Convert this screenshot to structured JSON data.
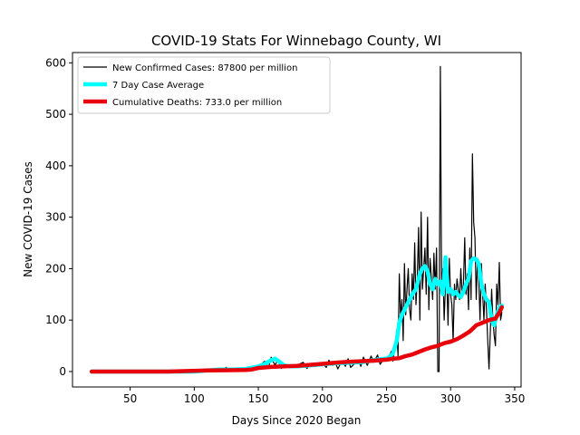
{
  "chart_data": {
    "type": "line",
    "title": "COVID-19 Stats For Winnebago County, WI",
    "xlabel": "Days Since 2020 Began",
    "ylabel": "New COVID-19 Cases",
    "xlim": [
      5,
      355
    ],
    "ylim": [
      -30,
      620
    ],
    "xticks": [
      50,
      100,
      150,
      200,
      250,
      300,
      350
    ],
    "yticks": [
      0,
      100,
      200,
      300,
      400,
      500,
      600
    ],
    "grid": false,
    "legend_position": "top-left",
    "series": [
      {
        "name": "New Confirmed Cases: 87800 per million",
        "color": "#000000",
        "style": "thin",
        "points": [
          [
            20,
            0
          ],
          [
            95,
            0
          ],
          [
            100,
            0
          ],
          [
            110,
            2
          ],
          [
            120,
            3
          ],
          [
            125,
            8
          ],
          [
            130,
            1
          ],
          [
            135,
            6
          ],
          [
            140,
            3
          ],
          [
            145,
            5
          ],
          [
            150,
            10
          ],
          [
            152,
            14
          ],
          [
            155,
            20
          ],
          [
            158,
            8
          ],
          [
            160,
            28
          ],
          [
            163,
            12
          ],
          [
            165,
            22
          ],
          [
            168,
            6
          ],
          [
            170,
            15
          ],
          [
            175,
            9
          ],
          [
            180,
            12
          ],
          [
            185,
            18
          ],
          [
            188,
            6
          ],
          [
            190,
            14
          ],
          [
            195,
            10
          ],
          [
            200,
            16
          ],
          [
            203,
            8
          ],
          [
            205,
            22
          ],
          [
            208,
            12
          ],
          [
            210,
            18
          ],
          [
            212,
            5
          ],
          [
            215,
            20
          ],
          [
            218,
            10
          ],
          [
            220,
            25
          ],
          [
            222,
            8
          ],
          [
            225,
            15
          ],
          [
            228,
            22
          ],
          [
            230,
            10
          ],
          [
            232,
            28
          ],
          [
            235,
            12
          ],
          [
            238,
            30
          ],
          [
            240,
            18
          ],
          [
            243,
            32
          ],
          [
            245,
            14
          ],
          [
            248,
            25
          ],
          [
            250,
            20
          ],
          [
            252,
            30
          ],
          [
            254,
            40
          ],
          [
            255,
            20
          ],
          [
            257,
            60
          ],
          [
            258,
            80
          ],
          [
            259,
            30
          ],
          [
            260,
            190
          ],
          [
            261,
            100
          ],
          [
            262,
            140
          ],
          [
            263,
            60
          ],
          [
            264,
            210
          ],
          [
            265,
            110
          ],
          [
            266,
            160
          ],
          [
            267,
            200
          ],
          [
            268,
            120
          ],
          [
            269,
            100
          ],
          [
            270,
            190
          ],
          [
            271,
            140
          ],
          [
            272,
            250
          ],
          [
            273,
            130
          ],
          [
            274,
            180
          ],
          [
            275,
            280
          ],
          [
            276,
            100
          ],
          [
            277,
            310
          ],
          [
            278,
            160
          ],
          [
            279,
            200
          ],
          [
            280,
            240
          ],
          [
            281,
            150
          ],
          [
            282,
            300
          ],
          [
            283,
            120
          ],
          [
            284,
            220
          ],
          [
            285,
            180
          ],
          [
            286,
            140
          ],
          [
            287,
            230
          ],
          [
            288,
            160
          ],
          [
            289,
            240
          ],
          [
            290,
            0
          ],
          [
            291,
            0
          ],
          [
            292,
            593
          ],
          [
            293,
            160
          ],
          [
            294,
            200
          ],
          [
            295,
            100
          ],
          [
            296,
            170
          ],
          [
            297,
            180
          ],
          [
            298,
            90
          ],
          [
            299,
            220
          ],
          [
            300,
            150
          ],
          [
            301,
            130
          ],
          [
            302,
            60
          ],
          [
            303,
            170
          ],
          [
            304,
            140
          ],
          [
            305,
            180
          ],
          [
            306,
            160
          ],
          [
            307,
            140
          ],
          [
            308,
            200
          ],
          [
            309,
            150
          ],
          [
            310,
            170
          ],
          [
            311,
            260
          ],
          [
            312,
            150
          ],
          [
            313,
            190
          ],
          [
            314,
            120
          ],
          [
            315,
            240
          ],
          [
            316,
            140
          ],
          [
            317,
            423
          ],
          [
            318,
            290
          ],
          [
            319,
            260
          ],
          [
            320,
            140
          ],
          [
            321,
            220
          ],
          [
            322,
            180
          ],
          [
            323,
            100
          ],
          [
            324,
            210
          ],
          [
            325,
            150
          ],
          [
            326,
            100
          ],
          [
            327,
            170
          ],
          [
            328,
            120
          ],
          [
            329,
            60
          ],
          [
            330,
            5
          ],
          [
            331,
            80
          ],
          [
            332,
            160
          ],
          [
            333,
            100
          ],
          [
            334,
            70
          ],
          [
            335,
            50
          ],
          [
            336,
            170
          ],
          [
            337,
            130
          ],
          [
            338,
            212
          ],
          [
            339,
            100
          ],
          [
            340,
            115
          ]
        ]
      },
      {
        "name": "7 Day Case Average",
        "color": "#00ffff",
        "style": "thick",
        "points": [
          [
            20,
            0
          ],
          [
            100,
            0
          ],
          [
            110,
            2
          ],
          [
            120,
            4
          ],
          [
            130,
            4
          ],
          [
            140,
            5
          ],
          [
            150,
            10
          ],
          [
            155,
            15
          ],
          [
            160,
            22
          ],
          [
            163,
            25
          ],
          [
            166,
            20
          ],
          [
            170,
            12
          ],
          [
            175,
            10
          ],
          [
            180,
            10
          ],
          [
            190,
            12
          ],
          [
            200,
            14
          ],
          [
            210,
            16
          ],
          [
            220,
            17
          ],
          [
            230,
            18
          ],
          [
            240,
            22
          ],
          [
            245,
            24
          ],
          [
            250,
            25
          ],
          [
            252,
            28
          ],
          [
            255,
            35
          ],
          [
            258,
            60
          ],
          [
            260,
            95
          ],
          [
            262,
            110
          ],
          [
            265,
            125
          ],
          [
            268,
            140
          ],
          [
            270,
            150
          ],
          [
            273,
            160
          ],
          [
            276,
            190
          ],
          [
            278,
            200
          ],
          [
            280,
            205
          ],
          [
            282,
            195
          ],
          [
            284,
            170
          ],
          [
            286,
            160
          ],
          [
            288,
            180
          ],
          [
            290,
            170
          ],
          [
            292,
            175
          ],
          [
            294,
            150
          ],
          [
            296,
            222
          ],
          [
            298,
            155
          ],
          [
            300,
            160
          ],
          [
            302,
            150
          ],
          [
            304,
            155
          ],
          [
            306,
            148
          ],
          [
            308,
            145
          ],
          [
            310,
            155
          ],
          [
            312,
            170
          ],
          [
            314,
            180
          ],
          [
            316,
            215
          ],
          [
            318,
            220
          ],
          [
            320,
            218
          ],
          [
            322,
            210
          ],
          [
            324,
            170
          ],
          [
            326,
            150
          ],
          [
            328,
            140
          ],
          [
            330,
            135
          ],
          [
            332,
            100
          ],
          [
            334,
            90
          ],
          [
            336,
            110
          ],
          [
            338,
            125
          ],
          [
            340,
            128
          ]
        ]
      },
      {
        "name": "Cumulative Deaths: 733.0 per million",
        "color": "#e8000b",
        "style": "thick",
        "points": [
          [
            20,
            0
          ],
          [
            80,
            0
          ],
          [
            95,
            1
          ],
          [
            110,
            2
          ],
          [
            140,
            3
          ],
          [
            145,
            4
          ],
          [
            150,
            7
          ],
          [
            160,
            9
          ],
          [
            170,
            10
          ],
          [
            180,
            11
          ],
          [
            190,
            13
          ],
          [
            200,
            15
          ],
          [
            210,
            17
          ],
          [
            220,
            19
          ],
          [
            230,
            20
          ],
          [
            240,
            21
          ],
          [
            250,
            23
          ],
          [
            255,
            25
          ],
          [
            260,
            26
          ],
          [
            265,
            30
          ],
          [
            270,
            33
          ],
          [
            275,
            38
          ],
          [
            280,
            43
          ],
          [
            285,
            47
          ],
          [
            290,
            50
          ],
          [
            295,
            55
          ],
          [
            300,
            58
          ],
          [
            305,
            63
          ],
          [
            310,
            70
          ],
          [
            315,
            78
          ],
          [
            318,
            85
          ],
          [
            320,
            90
          ],
          [
            325,
            95
          ],
          [
            330,
            100
          ],
          [
            335,
            103
          ],
          [
            338,
            115
          ],
          [
            340,
            125
          ]
        ]
      }
    ]
  }
}
